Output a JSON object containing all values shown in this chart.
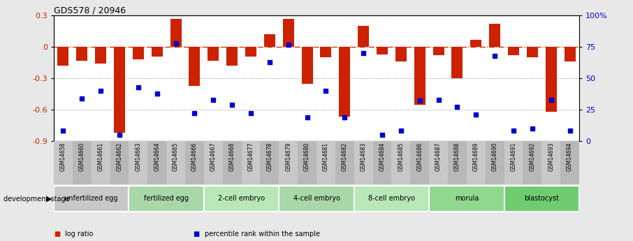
{
  "title": "GDS578 / 20946",
  "samples": [
    "GSM14658",
    "GSM14660",
    "GSM14661",
    "GSM14662",
    "GSM14663",
    "GSM14664",
    "GSM14665",
    "GSM14666",
    "GSM14667",
    "GSM14668",
    "GSM14677",
    "GSM14678",
    "GSM14679",
    "GSM14680",
    "GSM14681",
    "GSM14682",
    "GSM14683",
    "GSM14684",
    "GSM14685",
    "GSM14686",
    "GSM14687",
    "GSM14688",
    "GSM14689",
    "GSM14690",
    "GSM14691",
    "GSM14692",
    "GSM14693",
    "GSM14694"
  ],
  "log_ratio": [
    -0.18,
    -0.13,
    -0.16,
    -0.82,
    -0.12,
    -0.09,
    0.27,
    -0.37,
    -0.13,
    -0.18,
    -0.09,
    0.12,
    0.27,
    -0.35,
    -0.1,
    -0.67,
    0.2,
    -0.07,
    -0.14,
    -0.55,
    -0.08,
    -0.3,
    0.07,
    0.22,
    -0.08,
    -0.1,
    -0.62,
    -0.14
  ],
  "percentile": [
    8,
    34,
    40,
    5,
    43,
    38,
    78,
    22,
    33,
    29,
    22,
    63,
    77,
    19,
    40,
    19,
    70,
    5,
    8,
    32,
    33,
    27,
    21,
    68,
    8,
    10,
    33,
    8
  ],
  "bar_color": "#cc2200",
  "dot_color": "#0000cc",
  "background_color": "#e8e8e8",
  "plot_bg": "#ffffff",
  "ylim_left": [
    -0.9,
    0.3
  ],
  "ylim_right": [
    0,
    100
  ],
  "hline_zero_color": "#cc2200",
  "hline_dotted_color": "#888888",
  "groups": [
    {
      "label": "unfertilized egg",
      "start": 0,
      "end": 4,
      "color": "#c8c8c8"
    },
    {
      "label": "fertilized egg",
      "start": 4,
      "end": 8,
      "color": "#a8d8a8"
    },
    {
      "label": "2-cell embryo",
      "start": 8,
      "end": 12,
      "color": "#b8e8b8"
    },
    {
      "label": "4-cell embryo",
      "start": 12,
      "end": 16,
      "color": "#a8d8a8"
    },
    {
      "label": "8-cell embryo",
      "start": 16,
      "end": 20,
      "color": "#b8e8b8"
    },
    {
      "label": "morula",
      "start": 20,
      "end": 24,
      "color": "#90d890"
    },
    {
      "label": "blastocyst",
      "start": 24,
      "end": 28,
      "color": "#70cc70"
    }
  ],
  "legend_items": [
    {
      "label": "log ratio",
      "color": "#cc2200",
      "marker": "s"
    },
    {
      "label": "percentile rank within the sample",
      "color": "#0000cc",
      "marker": "s"
    }
  ],
  "dev_stage_label": "development stage"
}
